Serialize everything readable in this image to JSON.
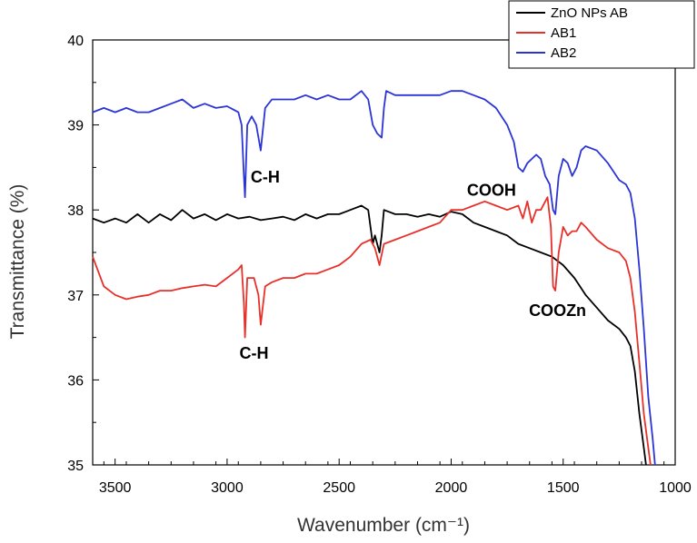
{
  "chart_data": {
    "type": "line",
    "title": "",
    "xlabel": "Wavenumber (cm⁻¹)",
    "ylabel": "Transmittance (%)",
    "xlim": [
      3600,
      1000
    ],
    "ylim": [
      35,
      40
    ],
    "x_ticks": [
      "3500",
      "3000",
      "2500",
      "2000",
      "1500",
      "1000"
    ],
    "y_ticks": [
      "35",
      "36",
      "37",
      "38",
      "39",
      "40"
    ],
    "legend_position": "top-right",
    "series": [
      {
        "name": "ZnO NPs AB",
        "color": "#000000",
        "points": [
          [
            3600,
            37.9
          ],
          [
            3550,
            37.85
          ],
          [
            3500,
            37.9
          ],
          [
            3450,
            37.85
          ],
          [
            3400,
            37.95
          ],
          [
            3350,
            37.85
          ],
          [
            3300,
            37.95
          ],
          [
            3250,
            37.88
          ],
          [
            3200,
            38.0
          ],
          [
            3150,
            37.9
          ],
          [
            3100,
            37.95
          ],
          [
            3050,
            37.88
          ],
          [
            3000,
            37.95
          ],
          [
            2950,
            37.9
          ],
          [
            2900,
            37.92
          ],
          [
            2850,
            37.88
          ],
          [
            2800,
            37.9
          ],
          [
            2750,
            37.92
          ],
          [
            2700,
            37.88
          ],
          [
            2650,
            37.95
          ],
          [
            2600,
            37.9
          ],
          [
            2550,
            37.95
          ],
          [
            2500,
            37.95
          ],
          [
            2450,
            38.0
          ],
          [
            2400,
            38.05
          ],
          [
            2370,
            38.0
          ],
          [
            2350,
            37.6
          ],
          [
            2340,
            37.7
          ],
          [
            2320,
            37.5
          ],
          [
            2310,
            37.7
          ],
          [
            2300,
            38.0
          ],
          [
            2250,
            37.95
          ],
          [
            2200,
            37.95
          ],
          [
            2150,
            37.92
          ],
          [
            2100,
            37.95
          ],
          [
            2050,
            37.92
          ],
          [
            2000,
            37.98
          ],
          [
            1950,
            37.95
          ],
          [
            1900,
            37.85
          ],
          [
            1850,
            37.8
          ],
          [
            1800,
            37.75
          ],
          [
            1750,
            37.7
          ],
          [
            1700,
            37.6
          ],
          [
            1650,
            37.55
          ],
          [
            1600,
            37.5
          ],
          [
            1550,
            37.45
          ],
          [
            1500,
            37.35
          ],
          [
            1450,
            37.2
          ],
          [
            1400,
            37.0
          ],
          [
            1350,
            36.85
          ],
          [
            1300,
            36.7
          ],
          [
            1250,
            36.6
          ],
          [
            1220,
            36.5
          ],
          [
            1200,
            36.4
          ],
          [
            1180,
            36.1
          ],
          [
            1160,
            35.6
          ],
          [
            1140,
            35.2
          ],
          [
            1130,
            35.0
          ]
        ]
      },
      {
        "name": "AB1",
        "color": "#e8302a",
        "points": [
          [
            3600,
            37.45
          ],
          [
            3550,
            37.1
          ],
          [
            3500,
            37.0
          ],
          [
            3450,
            36.95
          ],
          [
            3400,
            36.98
          ],
          [
            3350,
            37.0
          ],
          [
            3300,
            37.05
          ],
          [
            3250,
            37.05
          ],
          [
            3200,
            37.08
          ],
          [
            3150,
            37.1
          ],
          [
            3100,
            37.12
          ],
          [
            3050,
            37.1
          ],
          [
            3000,
            37.2
          ],
          [
            2950,
            37.3
          ],
          [
            2935,
            37.35
          ],
          [
            2925,
            36.9
          ],
          [
            2920,
            36.5
          ],
          [
            2910,
            37.2
          ],
          [
            2880,
            37.2
          ],
          [
            2860,
            37.0
          ],
          [
            2850,
            36.65
          ],
          [
            2830,
            37.1
          ],
          [
            2800,
            37.15
          ],
          [
            2750,
            37.2
          ],
          [
            2700,
            37.2
          ],
          [
            2650,
            37.25
          ],
          [
            2600,
            37.25
          ],
          [
            2550,
            37.3
          ],
          [
            2500,
            37.35
          ],
          [
            2450,
            37.45
          ],
          [
            2400,
            37.6
          ],
          [
            2360,
            37.65
          ],
          [
            2340,
            37.55
          ],
          [
            2320,
            37.35
          ],
          [
            2300,
            37.6
          ],
          [
            2250,
            37.65
          ],
          [
            2200,
            37.7
          ],
          [
            2150,
            37.75
          ],
          [
            2100,
            37.8
          ],
          [
            2050,
            37.85
          ],
          [
            2000,
            38.0
          ],
          [
            1950,
            38.0
          ],
          [
            1900,
            38.05
          ],
          [
            1850,
            38.1
          ],
          [
            1800,
            38.05
          ],
          [
            1750,
            38.0
          ],
          [
            1700,
            38.05
          ],
          [
            1680,
            37.9
          ],
          [
            1660,
            38.1
          ],
          [
            1640,
            37.85
          ],
          [
            1620,
            38.0
          ],
          [
            1600,
            38.0
          ],
          [
            1570,
            38.15
          ],
          [
            1555,
            37.8
          ],
          [
            1545,
            37.1
          ],
          [
            1535,
            37.05
          ],
          [
            1520,
            37.5
          ],
          [
            1500,
            37.8
          ],
          [
            1480,
            37.7
          ],
          [
            1460,
            37.75
          ],
          [
            1440,
            37.75
          ],
          [
            1420,
            37.85
          ],
          [
            1400,
            37.8
          ],
          [
            1350,
            37.65
          ],
          [
            1300,
            37.55
          ],
          [
            1250,
            37.5
          ],
          [
            1220,
            37.4
          ],
          [
            1200,
            37.2
          ],
          [
            1180,
            36.8
          ],
          [
            1160,
            36.2
          ],
          [
            1140,
            35.6
          ],
          [
            1120,
            35.2
          ],
          [
            1110,
            35.0
          ]
        ]
      },
      {
        "name": "AB2",
        "color": "#2b34d6",
        "points": [
          [
            3600,
            39.15
          ],
          [
            3550,
            39.2
          ],
          [
            3500,
            39.15
          ],
          [
            3450,
            39.2
          ],
          [
            3400,
            39.15
          ],
          [
            3350,
            39.15
          ],
          [
            3300,
            39.2
          ],
          [
            3250,
            39.25
          ],
          [
            3200,
            39.3
          ],
          [
            3150,
            39.2
          ],
          [
            3100,
            39.25
          ],
          [
            3050,
            39.2
          ],
          [
            3000,
            39.22
          ],
          [
            2950,
            39.15
          ],
          [
            2935,
            39.0
          ],
          [
            2925,
            38.4
          ],
          [
            2920,
            38.15
          ],
          [
            2910,
            39.0
          ],
          [
            2890,
            39.1
          ],
          [
            2870,
            39.0
          ],
          [
            2850,
            38.7
          ],
          [
            2830,
            39.2
          ],
          [
            2800,
            39.3
          ],
          [
            2750,
            39.3
          ],
          [
            2700,
            39.3
          ],
          [
            2650,
            39.35
          ],
          [
            2600,
            39.3
          ],
          [
            2550,
            39.35
          ],
          [
            2500,
            39.3
          ],
          [
            2450,
            39.3
          ],
          [
            2400,
            39.4
          ],
          [
            2370,
            39.3
          ],
          [
            2350,
            39.0
          ],
          [
            2330,
            38.9
          ],
          [
            2310,
            38.85
          ],
          [
            2300,
            39.2
          ],
          [
            2290,
            39.4
          ],
          [
            2250,
            39.35
          ],
          [
            2200,
            39.35
          ],
          [
            2150,
            39.35
          ],
          [
            2100,
            39.35
          ],
          [
            2050,
            39.35
          ],
          [
            2000,
            39.4
          ],
          [
            1950,
            39.4
          ],
          [
            1900,
            39.35
          ],
          [
            1850,
            39.3
          ],
          [
            1800,
            39.2
          ],
          [
            1750,
            39.0
          ],
          [
            1720,
            38.8
          ],
          [
            1700,
            38.5
          ],
          [
            1680,
            38.45
          ],
          [
            1660,
            38.55
          ],
          [
            1640,
            38.6
          ],
          [
            1620,
            38.65
          ],
          [
            1600,
            38.6
          ],
          [
            1580,
            38.4
          ],
          [
            1560,
            38.3
          ],
          [
            1545,
            38.0
          ],
          [
            1535,
            37.95
          ],
          [
            1520,
            38.4
          ],
          [
            1500,
            38.6
          ],
          [
            1480,
            38.55
          ],
          [
            1460,
            38.4
          ],
          [
            1440,
            38.5
          ],
          [
            1420,
            38.7
          ],
          [
            1400,
            38.75
          ],
          [
            1350,
            38.7
          ],
          [
            1300,
            38.55
          ],
          [
            1250,
            38.35
          ],
          [
            1220,
            38.3
          ],
          [
            1200,
            38.2
          ],
          [
            1180,
            37.9
          ],
          [
            1160,
            37.3
          ],
          [
            1140,
            36.6
          ],
          [
            1120,
            35.8
          ],
          [
            1100,
            35.3
          ],
          [
            1090,
            35.0
          ]
        ]
      }
    ],
    "annotations": [
      {
        "text": "C-H",
        "x": 2830,
        "y": 38.32
      },
      {
        "text": "C-H",
        "x": 2880,
        "y": 36.25
      },
      {
        "text": "COOH",
        "x": 1820,
        "y": 38.17
      },
      {
        "text": "COOZn",
        "x": 1525,
        "y": 36.75
      }
    ]
  }
}
